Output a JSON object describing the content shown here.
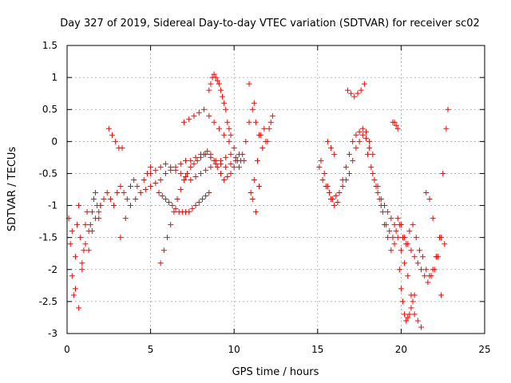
{
  "chart_data": {
    "type": "scatter",
    "title": "Day 327 of 2019, Sidereal Day-to-day VTEC variation (SDTVAR) for receiver sc02",
    "xlabel": "GPS time / hours",
    "ylabel": "SDTVAR / TECUs",
    "xlim": [
      0,
      25
    ],
    "ylim": [
      -3,
      1.5
    ],
    "x_ticks": [
      0,
      5,
      10,
      15,
      20,
      25
    ],
    "x_tick_labels": [
      "0",
      "5",
      "10",
      "15",
      "20",
      "25"
    ],
    "y_ticks": [
      1.5,
      1,
      0.5,
      0,
      -0.5,
      -1,
      -1.5,
      -2,
      -2.5,
      -3
    ],
    "y_tick_labels": [
      "1.5",
      "1",
      "0.5",
      "0",
      "-0.5",
      "-1",
      "-1.5",
      "-2",
      "-2.5",
      "-3"
    ],
    "grid": true,
    "marker": "+",
    "color": "#ff0000",
    "series": [
      {
        "name": "SDTVAR",
        "x": [
          0.1,
          0.2,
          0.3,
          0.4,
          0.5,
          0.6,
          0.7,
          0.8,
          0.9,
          1.0,
          1.1,
          1.2,
          1.3,
          1.4,
          1.5,
          1.6,
          1.7,
          1.8,
          1.9,
          2.0,
          0.3,
          0.5,
          0.7,
          0.9,
          1.1,
          1.3,
          1.5,
          1.7,
          1.9,
          2.0,
          2.2,
          2.4,
          2.6,
          2.8,
          3.0,
          3.2,
          3.4,
          3.6,
          3.8,
          4.0,
          4.2,
          4.4,
          4.6,
          4.8,
          5.0,
          2.5,
          2.7,
          2.9,
          3.1,
          3.3,
          3.2,
          3.5,
          3.8,
          4.1,
          4.4,
          4.7,
          5.0,
          5.3,
          5.6,
          5.9,
          6.2,
          6.5,
          6.8,
          7.1,
          7.4,
          7.7,
          8.0,
          8.3,
          8.6,
          8.9,
          9.2,
          9.5,
          9.8,
          10.1,
          5.0,
          5.3,
          5.6,
          5.9,
          6.2,
          6.5,
          6.8,
          7.1,
          7.4,
          7.7,
          8.0,
          8.3,
          8.6,
          8.9,
          9.2,
          9.5,
          9.8,
          10.1,
          10.4,
          5.5,
          5.7,
          5.9,
          6.1,
          6.3,
          6.5,
          6.7,
          6.9,
          7.1,
          7.3,
          7.5,
          7.7,
          7.9,
          8.1,
          8.3,
          8.5,
          5.6,
          5.8,
          6.0,
          6.2,
          6.4,
          6.6,
          6.8,
          7.0,
          7.2,
          7.4,
          7.6,
          7.8,
          8.0,
          8.2,
          8.4,
          8.6,
          8.8,
          9.0,
          9.2,
          9.4,
          9.6,
          9.8,
          10.0,
          10.2,
          7.0,
          7.3,
          7.6,
          7.9,
          8.2,
          8.5,
          8.8,
          9.1,
          9.4,
          9.7,
          10.0,
          10.3,
          10.6,
          8.5,
          8.6,
          8.7,
          8.8,
          8.9,
          9.0,
          9.1,
          9.2,
          9.3,
          9.4,
          9.5,
          9.6,
          9.7,
          9.8,
          10.3,
          10.5,
          10.7,
          10.9,
          11.1,
          11.3,
          11.5,
          11.7,
          11.9,
          12.1,
          12.3,
          11.0,
          11.2,
          11.4,
          11.6,
          11.8,
          12.0,
          12.2,
          11.1,
          11.3,
          11.5,
          10.9,
          11.2,
          15.1,
          15.3,
          15.5,
          15.7,
          15.9,
          16.1,
          16.3,
          16.5,
          16.7,
          16.9,
          17.1,
          17.3,
          17.5,
          17.7,
          17.9,
          18.1,
          15.2,
          15.4,
          15.6,
          15.8,
          16.0,
          16.2,
          15.6,
          15.8,
          16.0,
          16.5,
          16.7,
          16.9,
          17.1,
          17.3,
          17.5,
          17.7,
          17.9,
          18.1,
          18.3,
          16.8,
          17.0,
          17.2,
          17.4,
          17.6,
          17.8,
          18.3,
          18.5,
          18.7,
          18.9,
          19.1,
          19.3,
          19.5,
          19.7,
          19.9,
          20.1,
          20.3,
          20.5,
          20.7,
          20.9,
          21.1,
          21.3,
          21.5,
          21.7,
          21.9,
          22.1,
          18.6,
          18.8,
          19.0,
          19.2,
          19.4,
          19.6,
          19.8,
          20.0,
          20.2,
          20.4,
          20.6,
          20.8,
          21.0,
          21.2,
          19.5,
          19.6,
          19.7,
          19.8,
          19.9,
          20.0,
          20.1,
          20.2,
          20.3,
          20.4,
          20.5,
          20.6,
          20.7,
          20.8,
          21.5,
          21.7,
          21.9,
          22.1,
          22.3,
          22.5,
          22.7,
          22.4,
          22.6,
          22.8,
          18.0,
          18.2,
          18.4,
          18.6,
          18.8,
          19.0,
          19.2,
          19.4,
          19.6,
          19.8,
          20.0,
          20.2,
          20.4,
          20.6,
          20.8,
          21.0,
          21.2,
          21.4,
          21.6,
          21.8,
          22.0,
          22.2,
          22.4
        ],
        "y": [
          -1.2,
          -1.6,
          -2.1,
          -2.4,
          -1.8,
          -1.3,
          -1.0,
          -1.5,
          -2.0,
          -1.7,
          -1.3,
          -1.1,
          -1.4,
          -1.3,
          -1.1,
          -0.9,
          -0.8,
          -1.0,
          -1.2,
          -1.0,
          -1.4,
          -2.3,
          -2.6,
          -1.9,
          -1.6,
          -1.7,
          -1.4,
          -1.2,
          -1.1,
          -1.0,
          -0.9,
          -0.8,
          -0.9,
          -1.0,
          -0.8,
          -0.7,
          -0.8,
          -0.9,
          -0.7,
          -0.6,
          -0.7,
          -0.8,
          -0.6,
          -0.5,
          -0.4,
          0.2,
          0.1,
          0.0,
          -0.1,
          -0.1,
          -1.5,
          -1.2,
          -1.0,
          -0.9,
          -0.8,
          -0.75,
          -0.7,
          -0.65,
          -0.6,
          -0.5,
          -0.45,
          -0.4,
          -0.35,
          -0.3,
          -0.3,
          -0.25,
          -0.2,
          -0.2,
          -0.25,
          -0.3,
          -0.35,
          -0.4,
          -0.35,
          -0.3,
          -0.5,
          -0.45,
          -0.4,
          -0.35,
          -0.4,
          -0.45,
          -0.5,
          -0.55,
          -0.6,
          -0.55,
          -0.5,
          -0.45,
          -0.4,
          -0.35,
          -0.3,
          -0.25,
          -0.2,
          -0.25,
          -0.3,
          -0.8,
          -0.85,
          -0.9,
          -0.95,
          -1.0,
          -1.05,
          -1.1,
          -1.1,
          -1.1,
          -1.1,
          -1.05,
          -1.0,
          -0.95,
          -0.9,
          -0.85,
          -0.8,
          -1.9,
          -1.7,
          -1.5,
          -1.3,
          -1.1,
          -0.9,
          -0.75,
          -0.6,
          -0.5,
          -0.4,
          -0.35,
          -0.3,
          -0.25,
          -0.2,
          -0.15,
          -0.2,
          -0.3,
          -0.4,
          -0.5,
          -0.6,
          -0.55,
          -0.5,
          -0.4,
          -0.3,
          0.3,
          0.35,
          0.4,
          0.45,
          0.5,
          0.4,
          0.3,
          0.2,
          0.1,
          0.0,
          -0.1,
          -0.2,
          -0.3,
          0.8,
          0.9,
          1.0,
          1.05,
          1.0,
          0.95,
          0.9,
          0.8,
          0.7,
          0.6,
          0.5,
          0.3,
          0.2,
          0.1,
          -0.4,
          -0.2,
          0.0,
          0.3,
          0.5,
          0.3,
          0.1,
          -0.1,
          0.0,
          0.2,
          0.4,
          -0.8,
          -0.6,
          -0.3,
          0.1,
          0.2,
          0.0,
          0.3,
          -0.9,
          -1.1,
          -0.7,
          0.9,
          0.6,
          -0.4,
          -0.6,
          -0.7,
          -0.8,
          -0.9,
          -0.85,
          -0.8,
          -0.7,
          -0.6,
          -0.5,
          -0.3,
          -0.1,
          0.0,
          0.1,
          0.05,
          -0.1,
          -0.3,
          -0.5,
          -0.7,
          -0.9,
          -1.0,
          -0.95,
          0.0,
          -0.1,
          -0.2,
          -0.6,
          -0.4,
          -0.2,
          0.0,
          0.1,
          0.15,
          0.2,
          0.15,
          0.0,
          -0.2,
          0.8,
          0.75,
          0.7,
          0.75,
          0.8,
          0.9,
          -0.5,
          -0.7,
          -0.9,
          -1.1,
          -1.3,
          -1.4,
          -1.5,
          -1.4,
          -1.3,
          -1.5,
          -1.6,
          -1.4,
          -1.3,
          -1.5,
          -1.7,
          -1.8,
          -2.0,
          -2.1,
          -2.0,
          -1.8,
          -0.7,
          -1.0,
          -1.3,
          -1.5,
          -1.7,
          -1.6,
          -1.5,
          -1.7,
          -1.9,
          -2.1,
          -2.4,
          -2.7,
          -2.8,
          -2.9,
          0.3,
          0.3,
          0.25,
          0.2,
          -2.0,
          -2.3,
          -2.5,
          -2.7,
          -2.8,
          -2.75,
          -2.7,
          -2.6,
          -2.5,
          -2.4,
          -0.8,
          -0.9,
          -1.2,
          -1.8,
          -1.5,
          -0.5,
          0.2,
          -2.4,
          -1.6,
          0.5,
          -0.2,
          -0.4,
          -0.6,
          -0.8,
          -0.9,
          -1.0,
          -1.1,
          -1.2,
          -1.3,
          -1.2,
          -1.3,
          -1.5,
          -1.6,
          -1.7,
          -1.8,
          -1.9,
          -2.0,
          -2.1,
          -2.2,
          -2.1,
          -2.0,
          -1.8,
          -1.5
        ]
      }
    ]
  }
}
